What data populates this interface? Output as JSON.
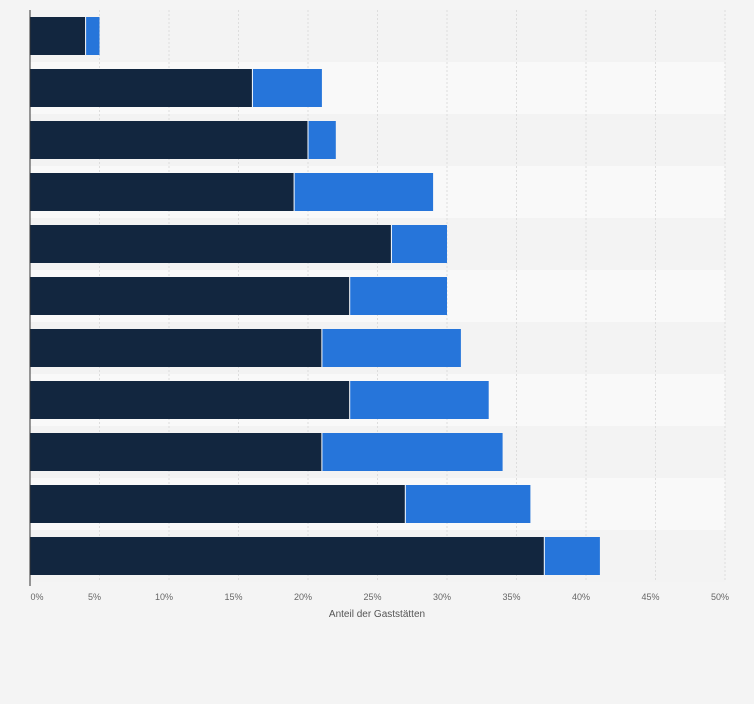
{
  "chart_data": {
    "type": "bar",
    "orientation": "horizontal",
    "stacked": true,
    "xlabel": "Anteil der Gaststätten",
    "xlim": [
      0,
      50
    ],
    "x_ticks": [
      "0%",
      "5%",
      "10%",
      "15%",
      "20%",
      "25%",
      "30%",
      "35%",
      "40%",
      "45%",
      "50%"
    ],
    "grid": true,
    "legend": "none",
    "categories": [
      "",
      "",
      "",
      "",
      "",
      "",
      "",
      "",
      "",
      "",
      ""
    ],
    "series": [
      {
        "values": [
          4,
          16,
          20,
          19,
          26,
          23,
          21,
          23,
          21,
          27,
          37
        ],
        "color": "#12263f"
      },
      {
        "values": [
          1,
          5,
          2,
          10,
          4,
          7,
          10,
          10,
          13,
          9,
          4
        ],
        "color": "#2675da"
      }
    ],
    "colors": {
      "background": "#f4f4f4",
      "band_light": "#f9f9f9",
      "band_dark": "#f3f3f3",
      "grid": "#dddddd",
      "axis": "#333333",
      "tick_text": "#666666",
      "label_text": "#555555"
    }
  }
}
